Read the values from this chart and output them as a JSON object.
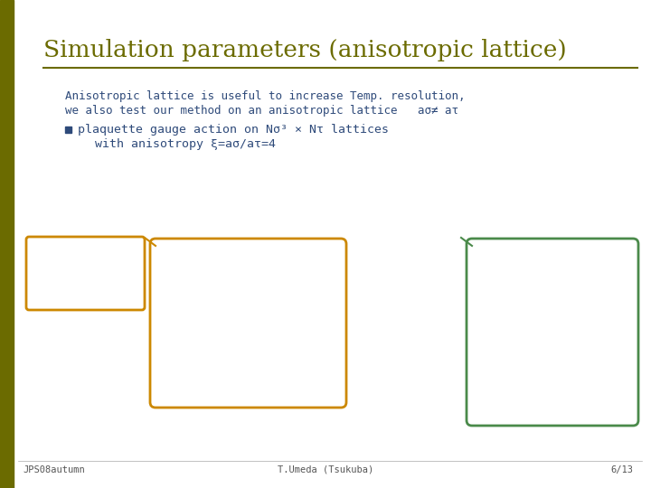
{
  "title": "Simulation parameters (anisotropic lattice)",
  "title_color": "#6b6b00",
  "bg_color": "#ffffff",
  "left_bar_color": "#6b6b00",
  "separator_color": "#6b6b00",
  "body_text_color": "#2e4a7a",
  "bullet_color": "#2e4a7a",
  "box1_border_color": "#cc8800",
  "box1_text_color": "#2e4a7a",
  "box1_text2_color": "#4a8a4a",
  "left_rect_color": "#cc8800",
  "box2_border_color": "#4a8a4a",
  "box2_text_color": "#2e4a7a",
  "box2_text_green_color": "#4a8a4a",
  "footer_left": "JPS08autumn",
  "footer_center": "T.Umeda (Tsukuba)",
  "footer_right": "6/13",
  "footer_color": "#555555"
}
